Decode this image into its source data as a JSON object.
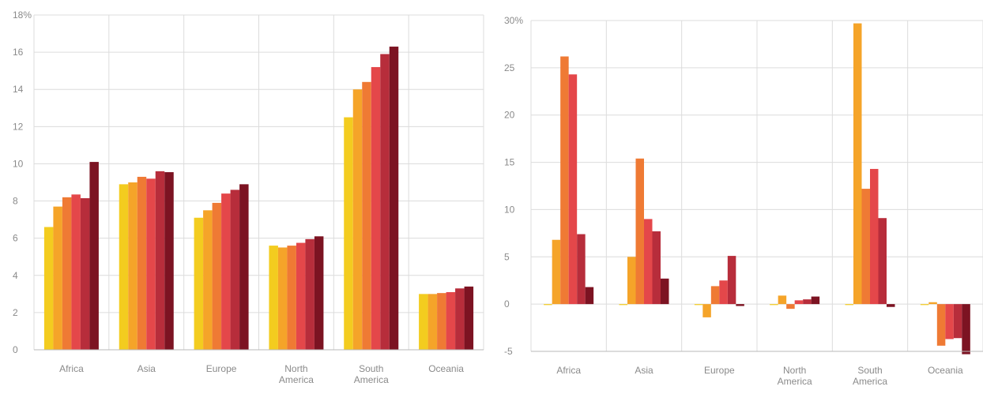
{
  "palette": [
    "#f3cc1f",
    "#f5a429",
    "#ef7a34",
    "#e4474a",
    "#b72d3b",
    "#7c1322"
  ],
  "chart_data": [
    {
      "type": "bar",
      "title": "",
      "xlabel": "",
      "ylabel": "",
      "ylim": [
        0,
        18
      ],
      "yticks": [
        0,
        2,
        4,
        6,
        8,
        10,
        12,
        14,
        16,
        18
      ],
      "ytick_labels": [
        "0",
        "2",
        "4",
        "6",
        "8",
        "10",
        "12",
        "14",
        "16",
        "18%"
      ],
      "categories": [
        "Africa",
        "Asia",
        "Europe",
        "North America",
        "South America",
        "Oceania"
      ],
      "grid": true,
      "series": [
        {
          "values": [
            6.6,
            8.9,
            7.1,
            5.6,
            12.5,
            3.0
          ]
        },
        {
          "values": [
            7.7,
            9.0,
            7.5,
            5.5,
            14.0,
            3.0
          ]
        },
        {
          "values": [
            8.2,
            9.3,
            7.9,
            5.6,
            14.4,
            3.05
          ]
        },
        {
          "values": [
            8.35,
            9.2,
            8.4,
            5.75,
            15.2,
            3.1
          ]
        },
        {
          "values": [
            8.15,
            9.6,
            8.6,
            5.95,
            15.9,
            3.3
          ]
        },
        {
          "values": [
            10.1,
            9.55,
            8.9,
            6.1,
            16.3,
            3.4
          ]
        }
      ]
    },
    {
      "type": "bar",
      "title": "",
      "xlabel": "",
      "ylabel": "",
      "ylim": [
        -5,
        30
      ],
      "yticks": [
        -5,
        0,
        5,
        10,
        15,
        20,
        25,
        30
      ],
      "ytick_labels": [
        "-5",
        "0",
        "5",
        "10",
        "15",
        "20",
        "25",
        "30%"
      ],
      "categories": [
        "Africa",
        "Asia",
        "Europe",
        "North America",
        "South America",
        "Oceania"
      ],
      "grid": true,
      "series": [
        {
          "values": [
            0.0,
            0.0,
            0.0,
            0.0,
            0.0,
            0.0
          ]
        },
        {
          "values": [
            6.8,
            5.0,
            -1.4,
            0.9,
            29.7,
            0.2
          ]
        },
        {
          "values": [
            26.2,
            15.4,
            1.9,
            -0.5,
            12.2,
            -4.4
          ]
        },
        {
          "values": [
            24.3,
            9.0,
            2.5,
            0.4,
            14.3,
            -3.7
          ]
        },
        {
          "values": [
            7.4,
            7.7,
            5.1,
            0.5,
            9.1,
            -3.6
          ]
        },
        {
          "values": [
            1.8,
            2.7,
            -0.2,
            0.8,
            -0.3,
            -5.3
          ]
        }
      ]
    }
  ]
}
